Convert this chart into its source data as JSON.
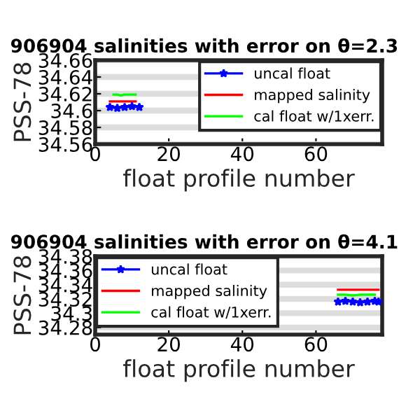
{
  "chart_data": [
    {
      "type": "line",
      "title": "906904 salinities with error on θ=2.3",
      "xlabel": "float profile number",
      "ylabel": "PSS-78",
      "xlim": [
        0,
        78
      ],
      "xticks": [
        0,
        20,
        40,
        60
      ],
      "ylim": [
        34.56,
        34.66
      ],
      "yticks": [
        34.56,
        34.58,
        34.6,
        34.62,
        34.64,
        34.66
      ],
      "grid": "y",
      "legend": "top right",
      "series": [
        {
          "name": "uncal float",
          "color": "#0000ff",
          "marker": "star",
          "x": [
            4,
            6,
            8,
            10,
            12
          ],
          "values": [
            34.604,
            34.603,
            34.604,
            34.605,
            34.604
          ]
        },
        {
          "name": "mapped salinity",
          "color": "#ff0000",
          "marker": "none",
          "x": [
            4,
            5,
            6,
            7,
            8,
            9,
            10,
            11
          ],
          "values": [
            34.611,
            34.611,
            34.611,
            34.611,
            34.611,
            34.611,
            34.611,
            34.611
          ]
        },
        {
          "name": "cal float w/1xerr.",
          "color": "#00ff00",
          "marker": "none",
          "x": [
            5,
            6,
            7,
            8,
            9,
            10,
            11
          ],
          "values": [
            34.619,
            34.619,
            34.618,
            34.619,
            34.619,
            34.619,
            34.619
          ]
        }
      ]
    },
    {
      "type": "line",
      "title": "906904 salinities with error on θ=4.1",
      "xlabel": "float profile number",
      "ylabel": "PSS-78",
      "xlim": [
        0,
        78
      ],
      "xticks": [
        0,
        20,
        40,
        60
      ],
      "ylim": [
        34.27,
        34.38
      ],
      "yticks": [
        34.28,
        34.3,
        34.32,
        34.34,
        34.36,
        34.38
      ],
      "grid": "y",
      "legend": "top left",
      "series": [
        {
          "name": "uncal float",
          "color": "#0000ff",
          "marker": "star",
          "x": [
            66,
            68,
            70,
            72,
            74,
            76,
            77
          ],
          "values": [
            34.316,
            34.317,
            34.316,
            34.315,
            34.316,
            34.317,
            34.316
          ]
        },
        {
          "name": "mapped salinity",
          "color": "#ff0000",
          "marker": "none",
          "x": [
            66,
            68,
            70,
            72,
            74,
            76,
            77
          ],
          "values": [
            34.333,
            34.333,
            34.333,
            34.333,
            34.333,
            34.333,
            34.333
          ]
        },
        {
          "name": "cal float w/1xerr.",
          "color": "#00ff00",
          "marker": "none",
          "x": [
            66,
            68,
            70,
            72,
            74,
            76
          ],
          "values": [
            34.326,
            34.326,
            34.325,
            34.326,
            34.326,
            34.326
          ]
        }
      ]
    }
  ]
}
